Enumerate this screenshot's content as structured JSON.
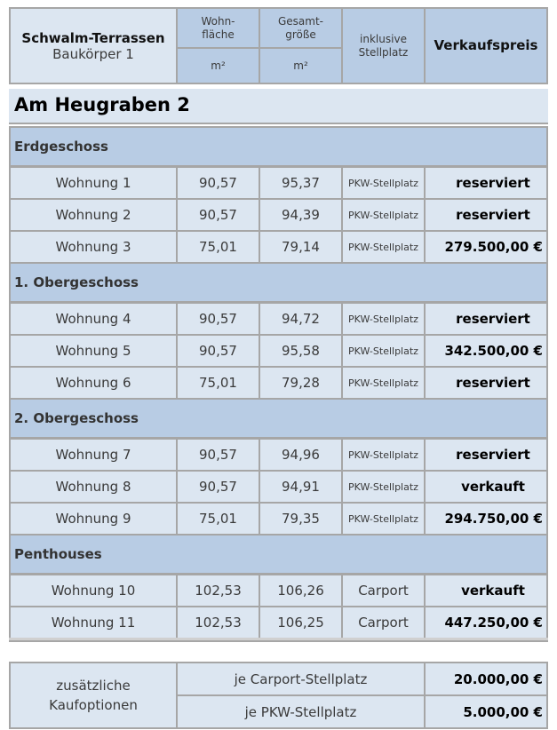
{
  "header": {
    "project": "Schwalm-Terrassen",
    "building": "Baukörper 1",
    "col_living": "Wohn-\nfläche",
    "col_total": "Gesamt-\ngröße",
    "unit": "m²",
    "col_parking": "inklusive\nStellplatz",
    "col_price": "Verkaufspreis"
  },
  "address": "Am Heugraben 2",
  "sections": [
    {
      "title": "Erdgeschoss",
      "rows": [
        {
          "name": "Wohnung 1",
          "living": "90,57",
          "total": "95,37",
          "parking": "PKW-Stellplatz",
          "price": "reserviert"
        },
        {
          "name": "Wohnung 2",
          "living": "90,57",
          "total": "94,39",
          "parking": "PKW-Stellplatz",
          "price": "reserviert"
        },
        {
          "name": "Wohnung 3",
          "living": "75,01",
          "total": "79,14",
          "parking": "PKW-Stellplatz",
          "price": "279.500,00 €"
        }
      ]
    },
    {
      "title": "1. Obergeschoss",
      "rows": [
        {
          "name": "Wohnung 4",
          "living": "90,57",
          "total": "94,72",
          "parking": "PKW-Stellplatz",
          "price": "reserviert"
        },
        {
          "name": "Wohnung 5",
          "living": "90,57",
          "total": "95,58",
          "parking": "PKW-Stellplatz",
          "price": "342.500,00 €"
        },
        {
          "name": "Wohnung 6",
          "living": "75,01",
          "total": "79,28",
          "parking": "PKW-Stellplatz",
          "price": "reserviert"
        }
      ]
    },
    {
      "title": "2. Obergeschoss",
      "rows": [
        {
          "name": "Wohnung 7",
          "living": "90,57",
          "total": "94,96",
          "parking": "PKW-Stellplatz",
          "price": "reserviert"
        },
        {
          "name": "Wohnung 8",
          "living": "90,57",
          "total": "94,91",
          "parking": "PKW-Stellplatz",
          "price": "verkauft"
        },
        {
          "name": "Wohnung 9",
          "living": "75,01",
          "total": "79,35",
          "parking": "PKW-Stellplatz",
          "price": "294.750,00 €"
        }
      ]
    },
    {
      "title": "Penthouses",
      "rows": [
        {
          "name": "Wohnung 10",
          "living": "102,53",
          "total": "106,26",
          "parking": "Carport",
          "price": "verkauft"
        },
        {
          "name": "Wohnung 11",
          "living": "102,53",
          "total": "106,25",
          "parking": "Carport",
          "price": "447.250,00 €"
        }
      ]
    }
  ],
  "options": {
    "label": "zusätzliche\nKaufoptionen",
    "items": [
      {
        "label": "je Carport-Stellplatz",
        "price": "20.000,00 €"
      },
      {
        "label": "je PKW-Stellplatz",
        "price": "5.000,00 €"
      }
    ]
  }
}
